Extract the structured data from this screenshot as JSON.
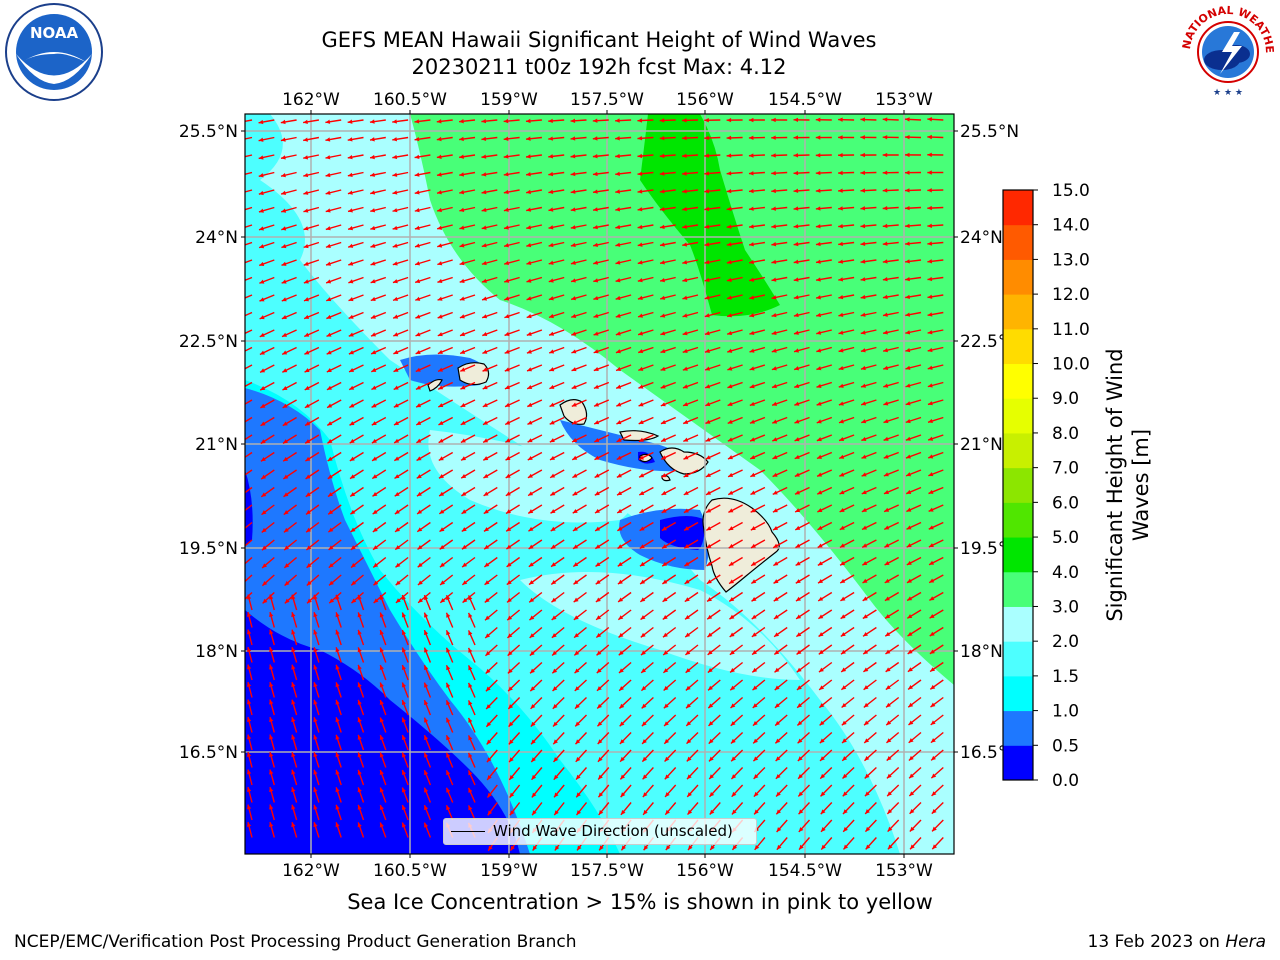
{
  "title": {
    "line1": "GEFS MEAN Hawaii Significant Height of Wind Waves",
    "line2": "20230211 t00z 192h fcst   Max: 4.12"
  },
  "logos": {
    "left": {
      "name": "noaa-logo",
      "text": "NOAA",
      "ring_text": "NATIONAL OCEANIC AND ATMOSPHERIC ADMINISTRATION · U.S. DEPARTMENT OF COMMERCE"
    },
    "right": {
      "name": "nws-logo",
      "ring_text": "NATIONAL WEATHER SERVICE"
    }
  },
  "map": {
    "lon_ticks": [
      "162°W",
      "160.5°W",
      "159°W",
      "157.5°W",
      "156°W",
      "154.5°W",
      "153°W"
    ],
    "lat_ticks": [
      "25.5°N",
      "24°N",
      "22.5°N",
      "21°N",
      "19.5°N",
      "18°N",
      "16.5°N"
    ],
    "legend": "Wind Wave Direction (unscaled)",
    "wave_direction": "from northeast toward southwest/west",
    "grid": true,
    "islands": [
      "Niihau",
      "Kauai",
      "Oahu",
      "Molokai",
      "Lanai",
      "Maui",
      "Kahoolawe",
      "Hawaii"
    ]
  },
  "colorbar": {
    "label": "Significant Height of Wind Waves [m]",
    "ticks": [
      "0.0",
      "0.5",
      "1.0",
      "1.5",
      "2.0",
      "3.0",
      "4.0",
      "5.0",
      "6.0",
      "7.0",
      "8.0",
      "9.0",
      "10.0",
      "11.0",
      "12.0",
      "13.0",
      "14.0",
      "15.0"
    ],
    "colors": [
      "#0000ff",
      "#1e78ff",
      "#00ffff",
      "#4dffff",
      "#aaffff",
      "#48ff78",
      "#00e600",
      "#50e600",
      "#8ce600",
      "#c8f000",
      "#e6ff00",
      "#ffff00",
      "#ffdc00",
      "#ffb400",
      "#ff8c00",
      "#ff5a00",
      "#ff2800"
    ]
  },
  "colors": {
    "arrow": "#ff0000",
    "land": "#efedda",
    "grid": "#b0b0b0"
  },
  "footer": {
    "note": "Sea Ice Concentration > 15% is shown in pink to yellow",
    "left": "NCEP/EMC/Verification Post Processing Product Generation Branch",
    "right_date": "13 Feb 2023 on ",
    "right_host": "Hera"
  }
}
